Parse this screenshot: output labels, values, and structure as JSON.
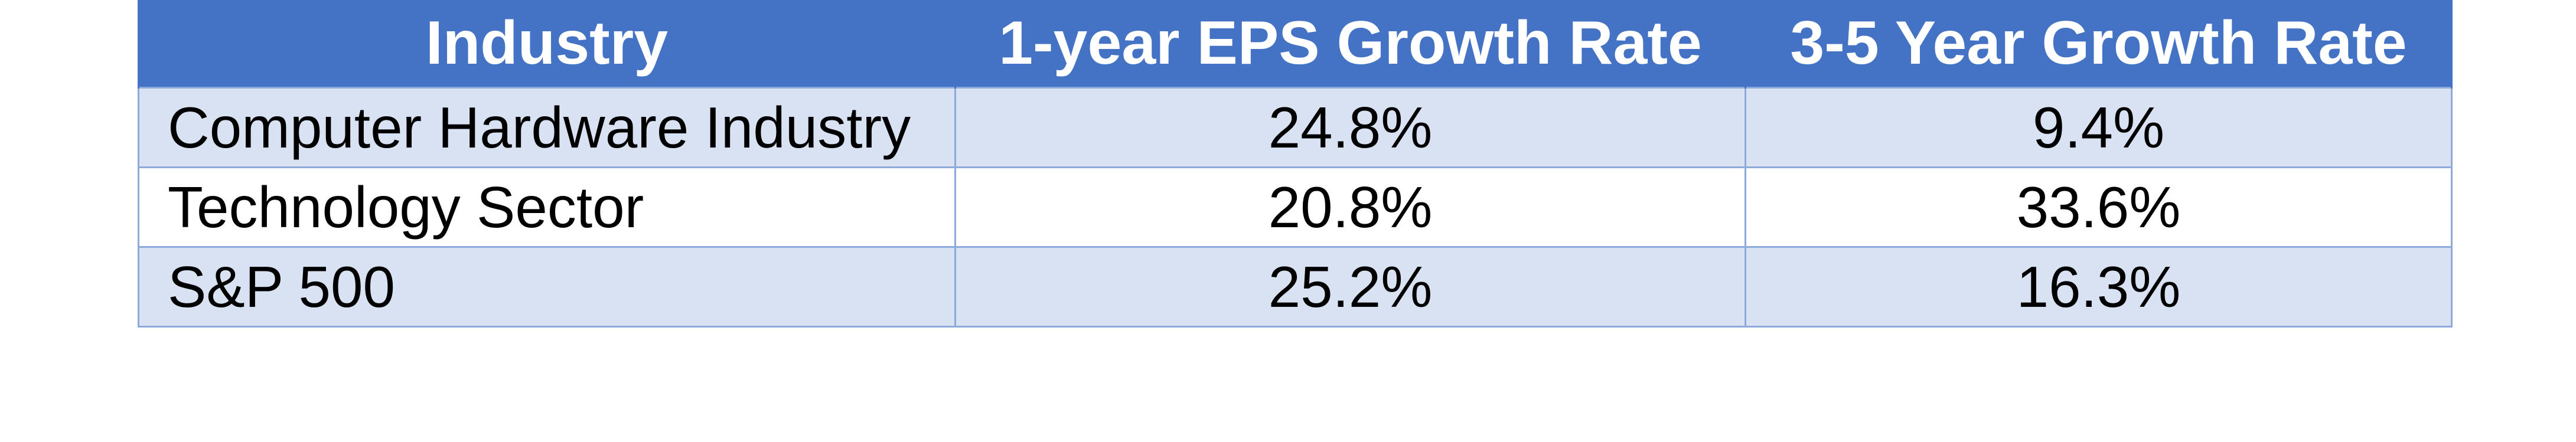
{
  "table": {
    "headers": [
      "Industry",
      "1-year EPS Growth Rate",
      "3-5 Year Growth Rate"
    ],
    "rows": [
      {
        "industry": "Computer Hardware Industry",
        "eps_1yr": "24.8%",
        "growth_3_5yr": "9.4%"
      },
      {
        "industry": "Technology Sector",
        "eps_1yr": "20.8%",
        "growth_3_5yr": "33.6%"
      },
      {
        "industry": "S&P 500",
        "eps_1yr": "25.2%",
        "growth_3_5yr": "16.3%"
      }
    ]
  },
  "colors": {
    "header_bg": "#4472c4",
    "header_text": "#ffffff",
    "band_row_bg": "#d9e2f3",
    "plain_row_bg": "#ffffff",
    "border": "#8eaadb"
  }
}
